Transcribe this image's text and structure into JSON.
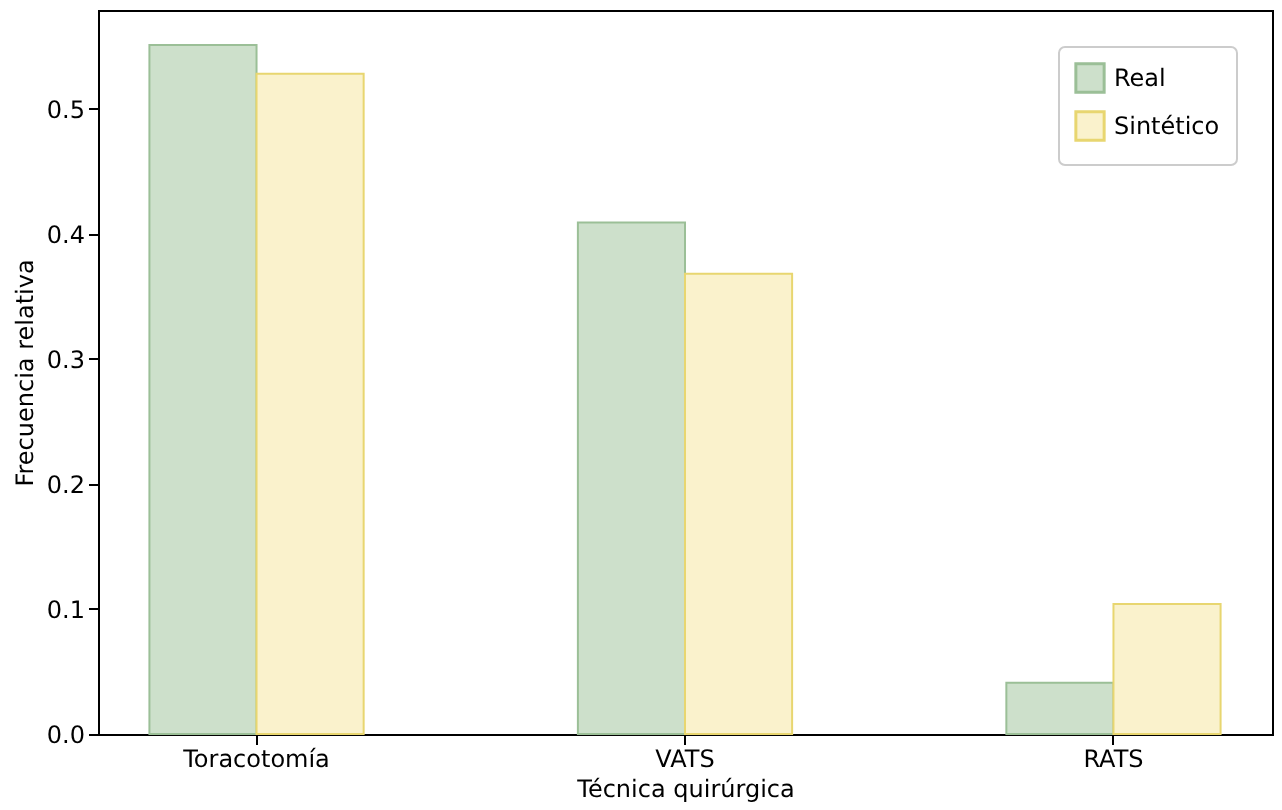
{
  "chart_data": {
    "type": "bar",
    "xlabel": "Técnica quirúrgica",
    "ylabel": "Frecuencia relativa",
    "categories": [
      "Toracotomía",
      "VATS",
      "RATS"
    ],
    "series": [
      {
        "name": "Real",
        "color": "#cde0cb",
        "values": [
          0.551,
          0.409,
          0.041
        ]
      },
      {
        "name": "Sintético",
        "color": "#faf2cc",
        "values": [
          0.528,
          0.368,
          0.104
        ]
      }
    ],
    "ylim": [
      0,
      0.579
    ],
    "yticks": [
      {
        "value": 0,
        "label": "0.0"
      },
      0.1,
      0.2,
      0.3,
      0.4,
      0.5
    ],
    "grid": false,
    "legend": "top right"
  }
}
